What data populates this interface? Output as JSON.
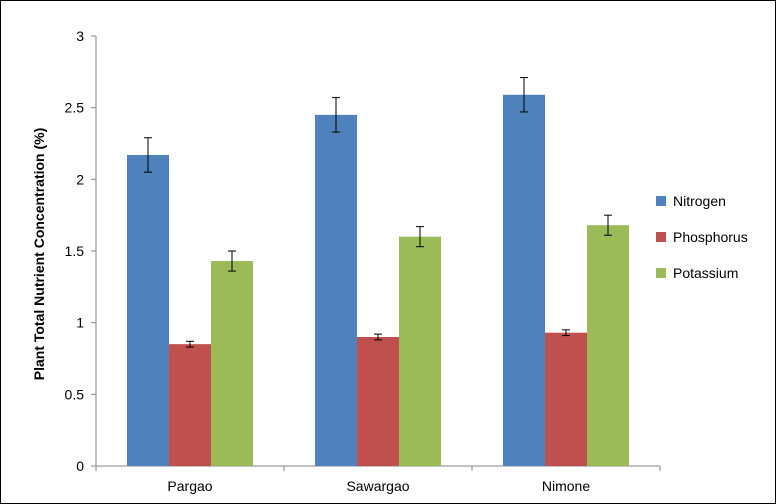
{
  "chart_data": {
    "type": "bar",
    "title": "",
    "xlabel": "",
    "ylabel": "Plant Total Nutrient Concentration (%)",
    "ylim": [
      0,
      3
    ],
    "yticks": [
      0,
      0.5,
      1,
      1.5,
      2,
      2.5,
      3
    ],
    "ytick_labels": [
      "0",
      "0.5",
      "1",
      "1.5",
      "2",
      "2.5",
      "3"
    ],
    "grid": false,
    "legend_position": "right",
    "categories": [
      "Pargao",
      "Sawargao",
      "Nimone"
    ],
    "series": [
      {
        "name": "Nitrogen",
        "color": "#4F81BD",
        "values": [
          2.17,
          2.45,
          2.59
        ],
        "errors": [
          0.12,
          0.12,
          0.12
        ]
      },
      {
        "name": "Phosphorus",
        "color": "#C0504D",
        "values": [
          0.85,
          0.9,
          0.93
        ],
        "errors": [
          0.02,
          0.02,
          0.02
        ]
      },
      {
        "name": "Potassium",
        "color": "#9BBB59",
        "values": [
          1.43,
          1.6,
          1.68
        ],
        "errors": [
          0.07,
          0.07,
          0.07
        ]
      }
    ]
  }
}
